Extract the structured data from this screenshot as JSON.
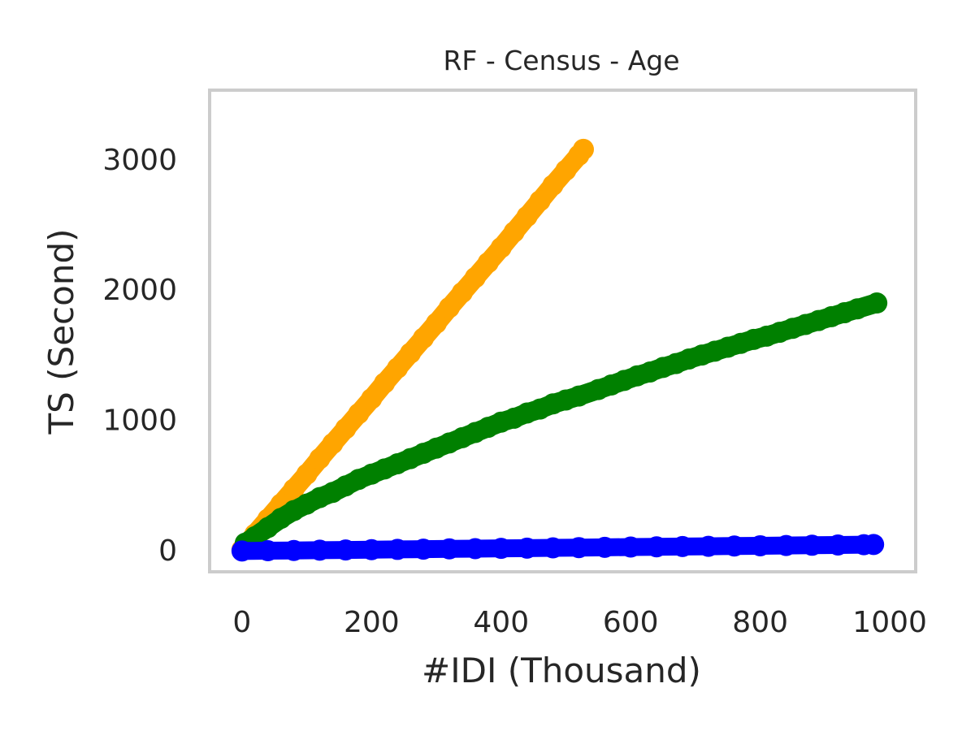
{
  "chart_data": {
    "type": "scatter",
    "title": "RF - Census - Age",
    "xlabel": "#IDI (Thousand)",
    "ylabel": "TS (Second)",
    "xlim": [
      -50,
      1040
    ],
    "ylim": [
      -170,
      3530
    ],
    "xticks": [
      0,
      200,
      400,
      600,
      800,
      1000
    ],
    "yticks": [
      0,
      1000,
      2000,
      3000
    ],
    "xtick_labels": [
      "0",
      "200",
      "400",
      "600",
      "800",
      "1000"
    ],
    "ytick_labels": [
      "0",
      "1000",
      "2000",
      "3000"
    ],
    "grid": false,
    "legend": "none",
    "frame_color": "#cccccc",
    "series": [
      {
        "color": "#ffa500",
        "x": [
          0,
          20,
          40,
          60,
          80,
          100,
          120,
          140,
          160,
          180,
          200,
          220,
          240,
          260,
          280,
          300,
          320,
          340,
          360,
          380,
          400,
          420,
          440,
          460,
          480,
          500,
          520,
          527
        ],
        "y": [
          0,
          120,
          235,
          350,
          465,
          580,
          700,
          815,
          930,
          1045,
          1160,
          1280,
          1395,
          1510,
          1625,
          1740,
          1860,
          1975,
          2090,
          2205,
          2320,
          2440,
          2560,
          2680,
          2800,
          2915,
          3030,
          3075
        ]
      },
      {
        "color": "#008000",
        "x": [
          5,
          20,
          40,
          60,
          80,
          100,
          120,
          140,
          160,
          180,
          200,
          220,
          240,
          260,
          280,
          300,
          320,
          340,
          360,
          380,
          400,
          420,
          440,
          460,
          480,
          500,
          520,
          550,
          570,
          590,
          610,
          630,
          650,
          670,
          690,
          710,
          730,
          750,
          770,
          790,
          810,
          830,
          850,
          870,
          890,
          910,
          930,
          950,
          980
        ],
        "y": [
          50,
          100,
          170,
          240,
          300,
          350,
          400,
          440,
          490,
          540,
          580,
          620,
          660,
          700,
          740,
          780,
          820,
          860,
          900,
          940,
          980,
          1010,
          1050,
          1080,
          1120,
          1150,
          1180,
          1230,
          1265,
          1300,
          1335,
          1365,
          1400,
          1430,
          1465,
          1495,
          1525,
          1555,
          1585,
          1615,
          1640,
          1670,
          1700,
          1730,
          1760,
          1790,
          1820,
          1850,
          1895
        ]
      },
      {
        "color": "#0000ff",
        "x": [
          0,
          40,
          80,
          120,
          160,
          200,
          240,
          280,
          320,
          360,
          400,
          440,
          480,
          520,
          560,
          600,
          640,
          680,
          720,
          760,
          800,
          840,
          880,
          920,
          960,
          975
        ],
        "y": [
          -10,
          -8,
          -6,
          -4,
          -2,
          0,
          2,
          4,
          6,
          8,
          10,
          12,
          14,
          16,
          18,
          20,
          22,
          24,
          26,
          28,
          30,
          32,
          34,
          36,
          38,
          40
        ]
      }
    ]
  }
}
